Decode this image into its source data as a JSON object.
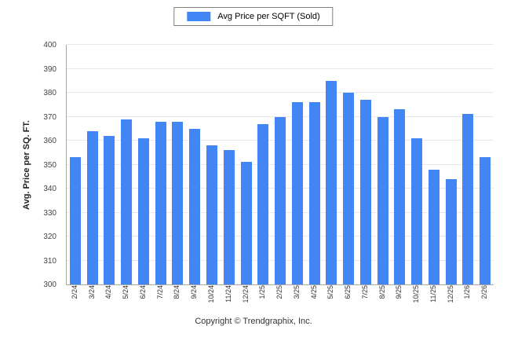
{
  "footer": {
    "copyright": "Copyright © Trendgraphix, Inc."
  },
  "chart_data": {
    "type": "bar",
    "title": "",
    "xlabel": "",
    "ylabel": "Avg. Price per SQ. FT.",
    "ylim": [
      300,
      400
    ],
    "ytick_step": 10,
    "grid": true,
    "legend_position": "top",
    "categories": [
      "2/24",
      "3/24",
      "4/24",
      "5/24",
      "6/24",
      "7/24",
      "8/24",
      "9/24",
      "10/24",
      "11/24",
      "12/24",
      "1/25",
      "2/25",
      "3/25",
      "4/25",
      "5/25",
      "6/25",
      "7/25",
      "8/25",
      "9/25",
      "10/25",
      "11/25",
      "12/25",
      "1/26",
      "2/26"
    ],
    "series": [
      {
        "name": "Avg Price per SQFT (Sold)",
        "color": "#4285f4",
        "values": [
          353,
          364,
          362,
          369,
          361,
          368,
          368,
          365,
          358,
          356,
          351,
          367,
          370,
          376,
          376,
          385,
          380,
          377,
          370,
          373,
          361,
          348,
          344,
          371,
          353
        ]
      }
    ]
  }
}
